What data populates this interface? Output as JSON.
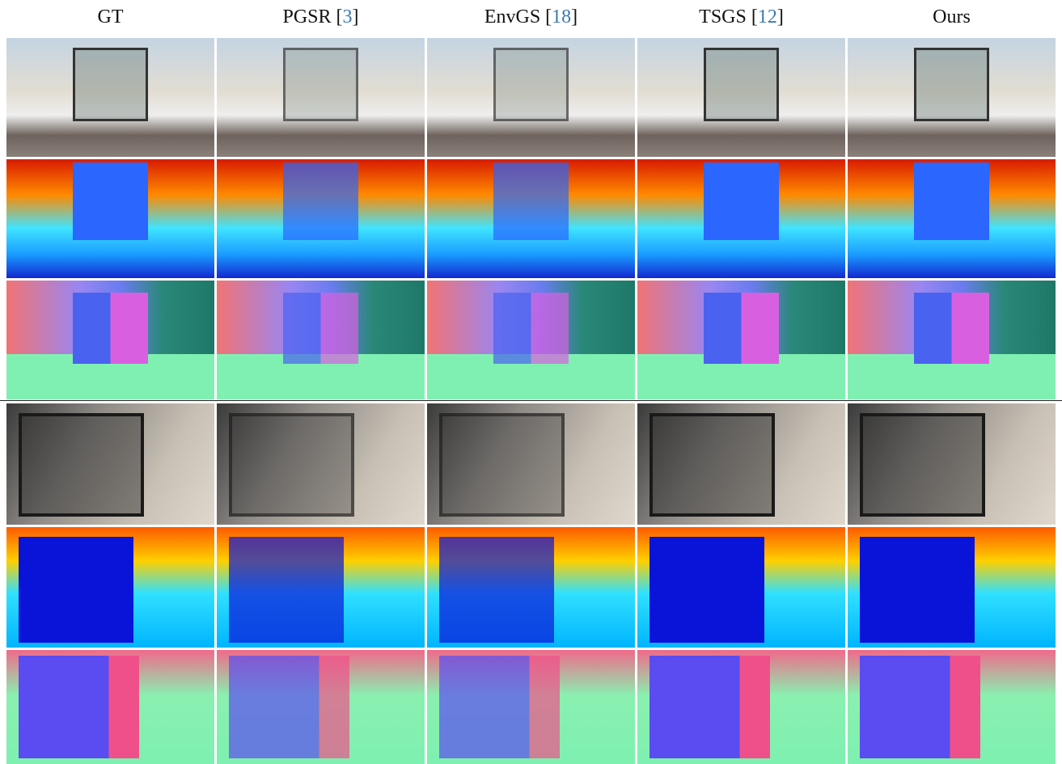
{
  "headers": [
    [
      "GT"
    ],
    [
      "PGSR [",
      "3",
      "]"
    ],
    [
      "EnvGS [",
      "18",
      "]"
    ],
    [
      "TSGS [",
      "12",
      "]"
    ],
    [
      "Ours"
    ]
  ]
}
